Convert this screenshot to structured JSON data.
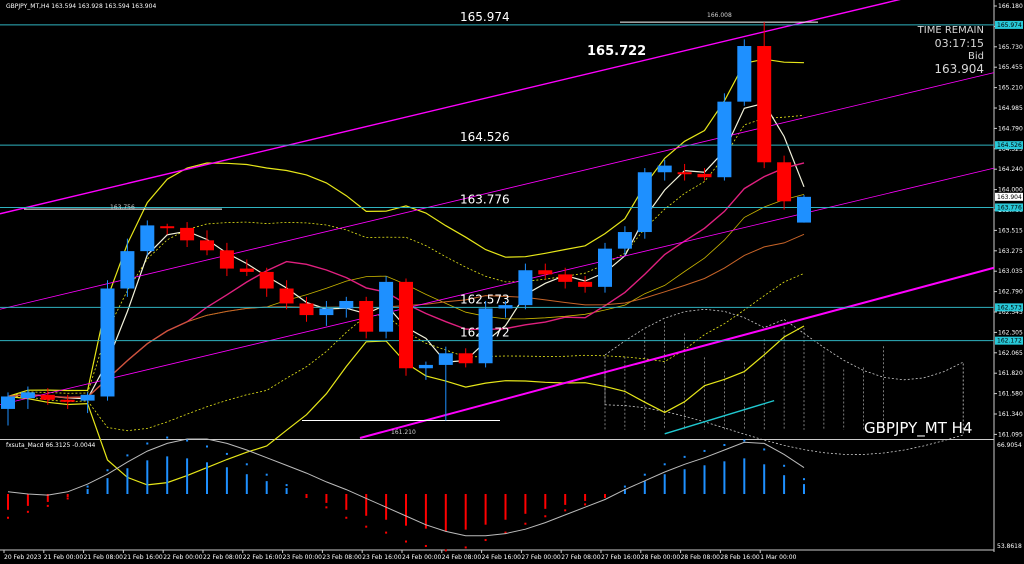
{
  "header": {
    "symbol_info": "GBPJPY_MT,H4  163.594 163.928 163.594 163.904",
    "macd_label": "fxsuta_Macd 66.3125  -0.0044",
    "watermark": "GBPJPY_MT H4"
  },
  "info_box": {
    "time_remain_label": "TIME REMAIN",
    "time_remain_value": "03:17:15",
    "bid_label": "Bid",
    "bid_value": "163.904"
  },
  "levels": [
    {
      "label": "165.974",
      "value": 165.974
    },
    {
      "label": "164.526",
      "value": 164.526
    },
    {
      "label": "163.776",
      "value": 163.776
    },
    {
      "label": "162.573",
      "value": 162.573
    },
    {
      "label": "162.172",
      "value": 162.172
    }
  ],
  "annotations": {
    "high_marker": "165.722",
    "top_line_label": "166.008",
    "left_line_label": "163.756",
    "bottom_line_label": "161.210"
  },
  "colors": {
    "bull": "#1e90ff",
    "bear": "#ff0000",
    "level_line": "#2fb3c0",
    "channel": "#ff00ff",
    "bollinger": "#e6e619",
    "ma_pink": "#e0207f",
    "ma_white": "#f2f2dc",
    "cloud": "#cccccc",
    "macd_line": "#bbbbbb",
    "axis_tag_bg": "#28c8d8"
  },
  "chart_data": [
    {
      "type": "candlestick",
      "title": "GBPJPY_MT,H4",
      "x_tick_labels": [
        "20 Feb 2023",
        "21 Feb 00:00",
        "21 Feb 08:00",
        "21 Feb 16:00",
        "22 Feb 00:00",
        "22 Feb 08:00",
        "22 Feb 16:00",
        "23 Feb 00:00",
        "23 Feb 08:00",
        "23 Feb 16:00",
        "24 Feb 00:00",
        "24 Feb 08:00",
        "24 Feb 16:00",
        "27 Feb 00:00",
        "27 Feb 08:00",
        "27 Feb 16:00",
        "28 Feb 00:00",
        "28 Feb 08:00",
        "28 Feb 16:00",
        "1 Mar 00:00"
      ],
      "y_tick_labels": [
        "166.180",
        "165.955",
        "165.730",
        "165.455",
        "165.210",
        "164.985",
        "164.790",
        "164.525",
        "164.240",
        "164.000",
        "163.760",
        "163.515",
        "163.275",
        "163.035",
        "162.790",
        "162.545",
        "162.305",
        "162.065",
        "161.820",
        "161.580",
        "161.340",
        "161.095"
      ],
      "axis_tags": [
        "165.974",
        "164.526",
        "163.904",
        "163.776",
        "162.573",
        "162.172"
      ],
      "ylim": [
        161.0,
        166.25
      ],
      "candles": [
        {
          "o": 161.35,
          "h": 161.55,
          "l": 161.15,
          "c": 161.5
        },
        {
          "o": 161.48,
          "h": 161.62,
          "l": 161.35,
          "c": 161.55
        },
        {
          "o": 161.52,
          "h": 161.6,
          "l": 161.4,
          "c": 161.46
        },
        {
          "o": 161.46,
          "h": 161.52,
          "l": 161.35,
          "c": 161.44
        },
        {
          "o": 161.45,
          "h": 161.55,
          "l": 161.3,
          "c": 161.52
        },
        {
          "o": 161.5,
          "h": 162.9,
          "l": 161.45,
          "c": 162.8
        },
        {
          "o": 162.8,
          "h": 163.4,
          "l": 162.7,
          "c": 163.25
        },
        {
          "o": 163.25,
          "h": 163.62,
          "l": 163.2,
          "c": 163.56
        },
        {
          "o": 163.55,
          "h": 163.58,
          "l": 163.45,
          "c": 163.53
        },
        {
          "o": 163.53,
          "h": 163.6,
          "l": 163.3,
          "c": 163.38
        },
        {
          "o": 163.38,
          "h": 163.5,
          "l": 163.2,
          "c": 163.26
        },
        {
          "o": 163.26,
          "h": 163.35,
          "l": 162.95,
          "c": 163.04
        },
        {
          "o": 163.04,
          "h": 163.15,
          "l": 162.95,
          "c": 163.0
        },
        {
          "o": 163.0,
          "h": 163.05,
          "l": 162.7,
          "c": 162.8
        },
        {
          "o": 162.8,
          "h": 162.9,
          "l": 162.55,
          "c": 162.62
        },
        {
          "o": 162.62,
          "h": 162.7,
          "l": 162.4,
          "c": 162.48
        },
        {
          "o": 162.48,
          "h": 162.65,
          "l": 162.35,
          "c": 162.56
        },
        {
          "o": 162.56,
          "h": 162.7,
          "l": 162.45,
          "c": 162.65
        },
        {
          "o": 162.65,
          "h": 162.7,
          "l": 162.2,
          "c": 162.28
        },
        {
          "o": 162.28,
          "h": 162.95,
          "l": 162.2,
          "c": 162.88
        },
        {
          "o": 162.88,
          "h": 162.92,
          "l": 161.75,
          "c": 161.84
        },
        {
          "o": 161.84,
          "h": 161.92,
          "l": 161.7,
          "c": 161.88
        },
        {
          "o": 161.88,
          "h": 162.1,
          "l": 161.21,
          "c": 162.02
        },
        {
          "o": 162.02,
          "h": 162.08,
          "l": 161.85,
          "c": 161.9
        },
        {
          "o": 161.9,
          "h": 162.65,
          "l": 161.85,
          "c": 162.56
        },
        {
          "o": 162.56,
          "h": 162.65,
          "l": 162.45,
          "c": 162.6
        },
        {
          "o": 162.6,
          "h": 163.1,
          "l": 162.55,
          "c": 163.02
        },
        {
          "o": 163.02,
          "h": 163.1,
          "l": 162.92,
          "c": 162.97
        },
        {
          "o": 162.97,
          "h": 163.05,
          "l": 162.8,
          "c": 162.88
        },
        {
          "o": 162.88,
          "h": 162.95,
          "l": 162.75,
          "c": 162.82
        },
        {
          "o": 162.82,
          "h": 163.35,
          "l": 162.75,
          "c": 163.28
        },
        {
          "o": 163.28,
          "h": 163.55,
          "l": 163.2,
          "c": 163.48
        },
        {
          "o": 163.48,
          "h": 164.25,
          "l": 163.4,
          "c": 164.2
        },
        {
          "o": 164.2,
          "h": 164.35,
          "l": 164.1,
          "c": 164.28
        },
        {
          "o": 164.2,
          "h": 164.3,
          "l": 164.1,
          "c": 164.18
        },
        {
          "o": 164.18,
          "h": 164.25,
          "l": 164.1,
          "c": 164.14
        },
        {
          "o": 164.14,
          "h": 165.15,
          "l": 164.1,
          "c": 165.05
        },
        {
          "o": 165.05,
          "h": 165.8,
          "l": 165.0,
          "c": 165.72
        },
        {
          "o": 165.72,
          "h": 166.008,
          "l": 164.25,
          "c": 164.32
        },
        {
          "o": 164.32,
          "h": 164.4,
          "l": 163.75,
          "c": 163.85
        },
        {
          "o": 163.594,
          "h": 163.928,
          "l": 163.594,
          "c": 163.904
        }
      ],
      "macd": {
        "ylim": [
          53.8618,
          66.9054
        ],
        "y_tick_labels": [
          "66.9054",
          "53.8618"
        ],
        "histogram": [
          -1.6,
          -1.2,
          -0.8,
          -0.3,
          0.5,
          1.6,
          2.6,
          3.4,
          3.8,
          3.6,
          3.2,
          2.7,
          2.0,
          1.3,
          0.6,
          -0.2,
          -0.9,
          -1.6,
          -2.2,
          -2.6,
          -3.2,
          -3.5,
          -3.8,
          -3.6,
          -3.1,
          -2.6,
          -2.0,
          -1.5,
          -1.1,
          -0.7,
          -0.2,
          0.5,
          1.3,
          2.0,
          2.5,
          2.9,
          3.3,
          3.6,
          3.0,
          1.9,
          1.0
        ],
        "signal": [
          0.2,
          0.0,
          -0.1,
          0.2,
          0.9,
          1.8,
          2.9,
          3.9,
          4.6,
          5.0,
          5.0,
          4.6,
          4.0,
          3.3,
          2.6,
          1.9,
          1.1,
          0.4,
          -0.4,
          -1.2,
          -2.0,
          -2.8,
          -3.4,
          -3.8,
          -3.8,
          -3.6,
          -3.2,
          -2.6,
          -1.9,
          -1.2,
          -0.5,
          0.4,
          1.2,
          2.0,
          2.7,
          3.3,
          4.0,
          4.7,
          4.6,
          3.6,
          2.4
        ]
      }
    }
  ]
}
